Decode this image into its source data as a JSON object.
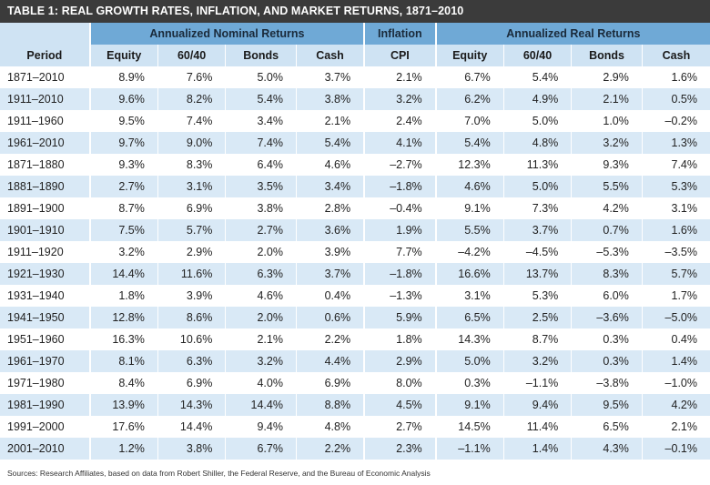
{
  "title": "TABLE 1: REAL GROWTH RATES, INFLATION, AND MARKET RETURNS, 1871–2010",
  "groups": {
    "nominal": "Annualized Nominal Returns",
    "inflation": "Inflation",
    "real": "Annualized Real Returns"
  },
  "columns": [
    "Period",
    "Equity",
    "60/40",
    "Bonds",
    "Cash",
    "CPI",
    "Equity",
    "60/40",
    "Bonds",
    "Cash"
  ],
  "rows": [
    [
      "1871–2010",
      "8.9%",
      "7.6%",
      "5.0%",
      "3.7%",
      "2.1%",
      "6.7%",
      "5.4%",
      "2.9%",
      "1.6%"
    ],
    [
      "1911–2010",
      "9.6%",
      "8.2%",
      "5.4%",
      "3.8%",
      "3.2%",
      "6.2%",
      "4.9%",
      "2.1%",
      "0.5%"
    ],
    [
      "1911–1960",
      "9.5%",
      "7.4%",
      "3.4%",
      "2.1%",
      "2.4%",
      "7.0%",
      "5.0%",
      "1.0%",
      "–0.2%"
    ],
    [
      "1961–2010",
      "9.7%",
      "9.0%",
      "7.4%",
      "5.4%",
      "4.1%",
      "5.4%",
      "4.8%",
      "3.2%",
      "1.3%"
    ],
    [
      "1871–1880",
      "9.3%",
      "8.3%",
      "6.4%",
      "4.6%",
      "–2.7%",
      "12.3%",
      "11.3%",
      "9.3%",
      "7.4%"
    ],
    [
      "1881–1890",
      "2.7%",
      "3.1%",
      "3.5%",
      "3.4%",
      "–1.8%",
      "4.6%",
      "5.0%",
      "5.5%",
      "5.3%"
    ],
    [
      "1891–1900",
      "8.7%",
      "6.9%",
      "3.8%",
      "2.8%",
      "–0.4%",
      "9.1%",
      "7.3%",
      "4.2%",
      "3.1%"
    ],
    [
      "1901–1910",
      "7.5%",
      "5.7%",
      "2.7%",
      "3.6%",
      "1.9%",
      "5.5%",
      "3.7%",
      "0.7%",
      "1.6%"
    ],
    [
      "1911–1920",
      "3.2%",
      "2.9%",
      "2.0%",
      "3.9%",
      "7.7%",
      "–4.2%",
      "–4.5%",
      "–5.3%",
      "–3.5%"
    ],
    [
      "1921–1930",
      "14.4%",
      "11.6%",
      "6.3%",
      "3.7%",
      "–1.8%",
      "16.6%",
      "13.7%",
      "8.3%",
      "5.7%"
    ],
    [
      "1931–1940",
      "1.8%",
      "3.9%",
      "4.6%",
      "0.4%",
      "–1.3%",
      "3.1%",
      "5.3%",
      "6.0%",
      "1.7%"
    ],
    [
      "1941–1950",
      "12.8%",
      "8.6%",
      "2.0%",
      "0.6%",
      "5.9%",
      "6.5%",
      "2.5%",
      "–3.6%",
      "–5.0%"
    ],
    [
      "1951–1960",
      "16.3%",
      "10.6%",
      "2.1%",
      "2.2%",
      "1.8%",
      "14.3%",
      "8.7%",
      "0.3%",
      "0.4%"
    ],
    [
      "1961–1970",
      "8.1%",
      "6.3%",
      "3.2%",
      "4.4%",
      "2.9%",
      "5.0%",
      "3.2%",
      "0.3%",
      "1.4%"
    ],
    [
      "1971–1980",
      "8.4%",
      "6.9%",
      "4.0%",
      "6.9%",
      "8.0%",
      "0.3%",
      "–1.1%",
      "–3.8%",
      "–1.0%"
    ],
    [
      "1981–1990",
      "13.9%",
      "14.3%",
      "14.4%",
      "8.8%",
      "4.5%",
      "9.1%",
      "9.4%",
      "9.5%",
      "4.2%"
    ],
    [
      "1991–2000",
      "17.6%",
      "14.4%",
      "9.4%",
      "4.8%",
      "2.7%",
      "14.5%",
      "11.4%",
      "6.5%",
      "2.1%"
    ],
    [
      "2001–2010",
      "1.2%",
      "3.8%",
      "6.7%",
      "2.2%",
      "2.3%",
      "–1.1%",
      "1.4%",
      "4.3%",
      "–0.1%"
    ]
  ],
  "source": "Sources: Research Affiliates, based on data from Robert Shiller, the Federal Reserve, and the Bureau of Economic Analysis",
  "colors": {
    "title_bg": "#3b3b3b",
    "group_header_bg": "#6fa9d6",
    "column_header_bg": "#cfe3f3",
    "stripe_bg": "#d9e9f6"
  }
}
